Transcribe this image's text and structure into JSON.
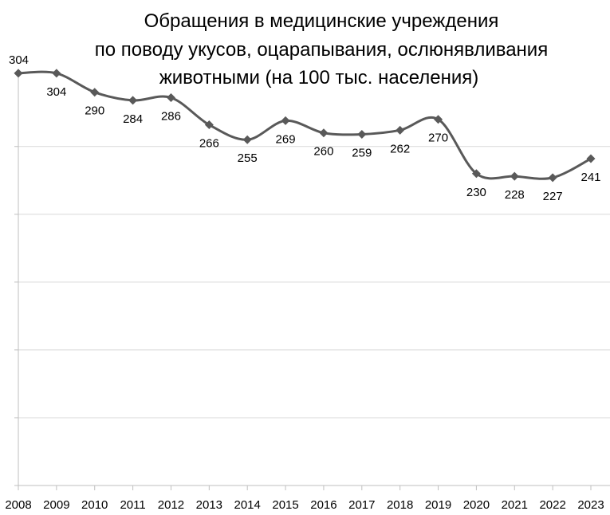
{
  "chart_data": {
    "type": "line",
    "title": [
      "Обращения в медицинские учреждения",
      "по поводу укусов, оцарапывания, ослюнявливания",
      "животными (на 100 тыс. населения)"
    ],
    "xlabel": "",
    "ylabel": "",
    "categories": [
      "2008",
      "2009",
      "2010",
      "2011",
      "2012",
      "2013",
      "2014",
      "2015",
      "2016",
      "2017",
      "2018",
      "2019",
      "2020",
      "2021",
      "2022",
      "2023"
    ],
    "series": [
      {
        "values": [
          304,
          304,
          290,
          284,
          286,
          266,
          255,
          269,
          260,
          259,
          262,
          270,
          230,
          228,
          227,
          241
        ]
      }
    ],
    "ylim": [
      0,
      310
    ],
    "y_gridlines": [
      50,
      100,
      150,
      200,
      250
    ],
    "y_tick_labels_shown": false,
    "grid": true,
    "legend": "none",
    "line_color": "#595959",
    "marker": "diamond",
    "smoothed": true
  }
}
